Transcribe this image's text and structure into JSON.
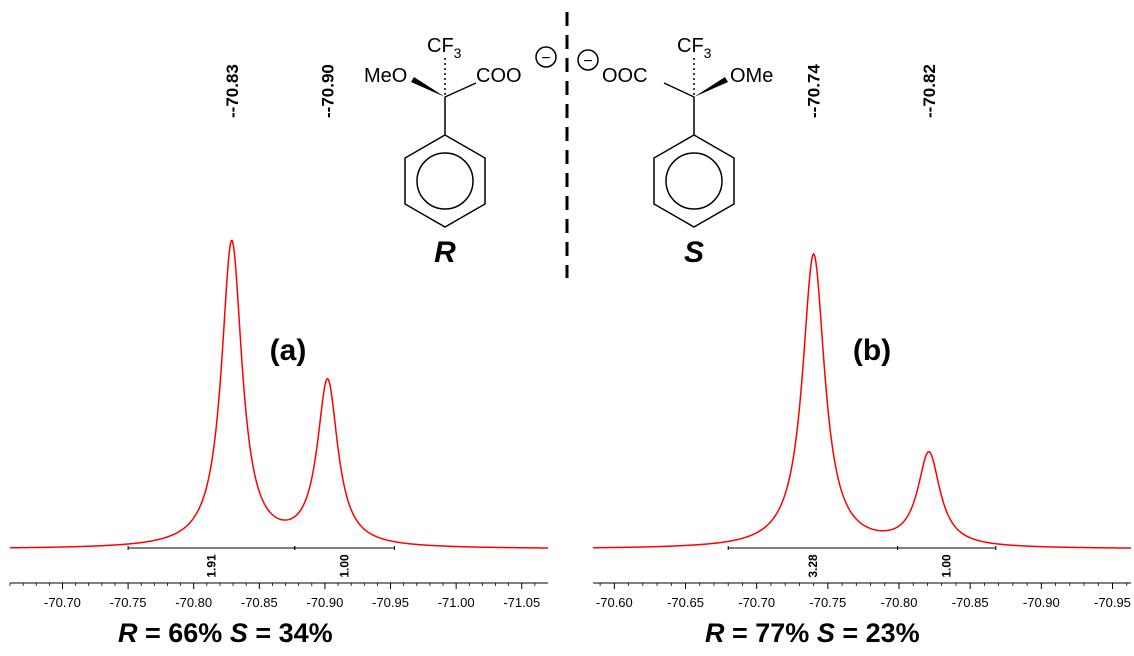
{
  "chart_data": [
    {
      "type": "line",
      "panel_label": "(a)",
      "x_reversed": true,
      "xlim": [
        -70.66,
        -71.07
      ],
      "x_ticks": [
        -70.7,
        -70.75,
        -70.8,
        -70.85,
        -70.9,
        -70.95,
        -71.0,
        -71.05
      ],
      "x_tick_labels": [
        "-70.70",
        "-70.75",
        "-70.80",
        "-70.85",
        "-70.90",
        "-70.95",
        "-71.00",
        "-71.05"
      ],
      "series": [
        {
          "color": "#ff0000",
          "peaks": [
            {
              "center": -70.829,
              "height": 1.0,
              "width": 0.0095
            },
            {
              "center": -70.902,
              "height": 0.54,
              "width": 0.0095
            }
          ]
        }
      ],
      "peak_labels": [
        {
          "x": -70.829,
          "label": "--70.83"
        },
        {
          "x": -70.902,
          "label": "--70.90"
        }
      ],
      "integrals": [
        {
          "from": -70.75,
          "to": -70.877,
          "value": "1.91"
        },
        {
          "from": -70.877,
          "to": -70.953,
          "value": "1.00"
        }
      ],
      "ratio": {
        "r_label": "R",
        "r_value": "= 66%",
        "s_label": "S",
        "s_value": "= 34%"
      }
    },
    {
      "type": "line",
      "panel_label": "(b)",
      "x_reversed": true,
      "xlim": [
        -70.585,
        -70.963
      ],
      "x_ticks": [
        -70.6,
        -70.65,
        -70.7,
        -70.75,
        -70.8,
        -70.85,
        -70.9,
        -70.95
      ],
      "x_tick_labels": [
        "-70.60",
        "-70.65",
        "-70.70",
        "-70.75",
        "-70.80",
        "-70.85",
        "-70.90",
        "-70.95"
      ],
      "series": [
        {
          "color": "#ff0000",
          "peaks": [
            {
              "center": -70.74,
              "height": 0.96,
              "width": 0.0095
            },
            {
              "center": -70.821,
              "height": 0.305,
              "width": 0.0095
            }
          ]
        }
      ],
      "peak_labels": [
        {
          "x": -70.74,
          "label": "--70.74"
        },
        {
          "x": -70.821,
          "label": "--70.82"
        }
      ],
      "integrals": [
        {
          "from": -70.68,
          "to": -70.799,
          "value": "3.28"
        },
        {
          "from": -70.799,
          "to": -70.868,
          "value": "1.00"
        }
      ],
      "ratio": {
        "r_label": "R",
        "r_value": "= 77%",
        "s_label": "S",
        "s_value": "= 23%"
      }
    }
  ],
  "structures": {
    "left": {
      "top_group": "CF",
      "top_sub": "3",
      "left_group": "MeO",
      "right_group": "COO",
      "charge": "−",
      "config": "R"
    },
    "right": {
      "top_group": "CF",
      "top_sub": "3",
      "left_group": "OOC",
      "right_group": "OMe",
      "charge": "−",
      "config": "S"
    }
  }
}
